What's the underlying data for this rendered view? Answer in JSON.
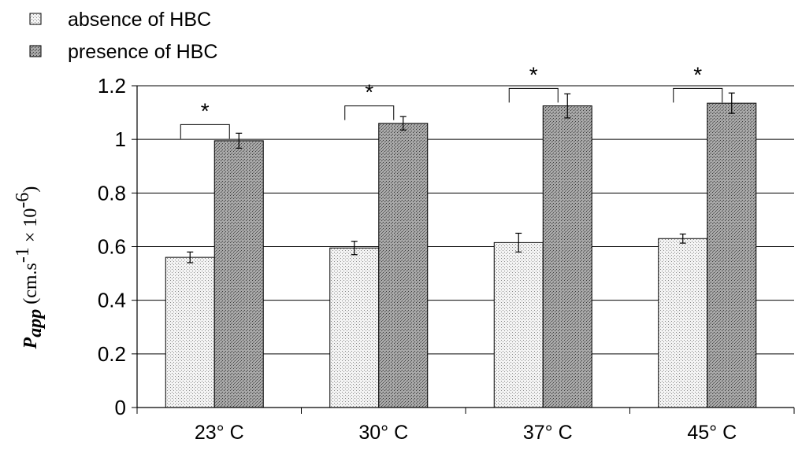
{
  "chart_data": {
    "type": "bar",
    "categories": [
      "23° C",
      "30° C",
      "37° C",
      "45° C"
    ],
    "series": [
      {
        "name": "absence of HBC",
        "values": [
          0.56,
          0.595,
          0.615,
          0.63
        ],
        "error": [
          0.02,
          0.025,
          0.035,
          0.017
        ],
        "color": "#f2f2f2",
        "pattern": "light-stipple"
      },
      {
        "name": "presence of HBC",
        "values": [
          0.995,
          1.06,
          1.125,
          1.135
        ],
        "error": [
          0.028,
          0.025,
          0.045,
          0.038
        ],
        "color": "#9c9c9c",
        "pattern": "dark-stipple"
      }
    ],
    "ylim": [
      0,
      1.2
    ],
    "yticks": [
      "0",
      "0.2",
      "0.4",
      "0.6",
      "0.8",
      "1",
      "1.2"
    ],
    "ylabel": {
      "symbol": "P",
      "subscript": "app",
      "units_prefix": "(cm.s",
      "units_exp1": "-1",
      "units_mid": " × 10",
      "units_exp2": "-6",
      "units_suffix": ")"
    },
    "xlabel": "",
    "title": "",
    "grid": true,
    "legend_placement": "top-left",
    "annotations": [
      {
        "category": "23° C",
        "text": "*",
        "bracket_top": 1.055
      },
      {
        "category": "30° C",
        "text": "*",
        "bracket_top": 1.125
      },
      {
        "category": "37° C",
        "text": "*",
        "bracket_top": 1.19
      },
      {
        "category": "45° C",
        "text": "*",
        "bracket_top": 1.19
      }
    ]
  }
}
